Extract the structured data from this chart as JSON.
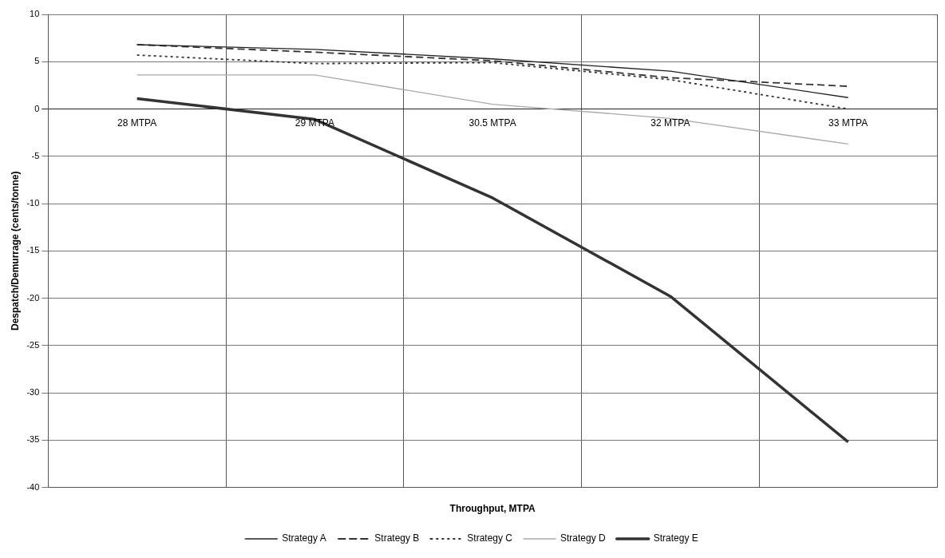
{
  "chart_data": {
    "type": "line",
    "xlabel": "Throughput, MTPA",
    "ylabel": "Despatch/Demurrage (cents/tonne)",
    "categories": [
      "28 MTPA",
      "29 MTPA",
      "30.5 MTPA",
      "32 MTPA",
      "33 MTPA"
    ],
    "series": [
      {
        "name": "Strategy A",
        "color": "#222222",
        "line_style": "solid",
        "values": [
          6.8,
          6.3,
          5.3,
          4.0,
          1.2
        ]
      },
      {
        "name": "Strategy B",
        "color": "#333333",
        "line_style": "dashed",
        "values": [
          6.8,
          6.0,
          5.1,
          3.3,
          2.4
        ]
      },
      {
        "name": "Strategy C",
        "color": "#333333",
        "line_style": "dotted",
        "values": [
          5.7,
          4.8,
          4.9,
          3.1,
          0
        ]
      },
      {
        "name": "Strategy D",
        "color": "#aaaaaa",
        "line_style": "solid",
        "values": [
          3.6,
          3.6,
          0.5,
          -1.0,
          -3.7
        ]
      },
      {
        "name": "Strategy E",
        "color": "#333333",
        "line_style": "solid",
        "values": [
          1.1,
          -1.1,
          -9.4,
          -19.8,
          -35.2
        ]
      }
    ],
    "ylim": [
      -40,
      10
    ],
    "yticks": [
      -40,
      -35,
      -30,
      -25,
      -20,
      -15,
      -10,
      -5,
      0,
      5,
      10
    ],
    "grid": true,
    "legend": "bottom",
    "marker": "none"
  }
}
